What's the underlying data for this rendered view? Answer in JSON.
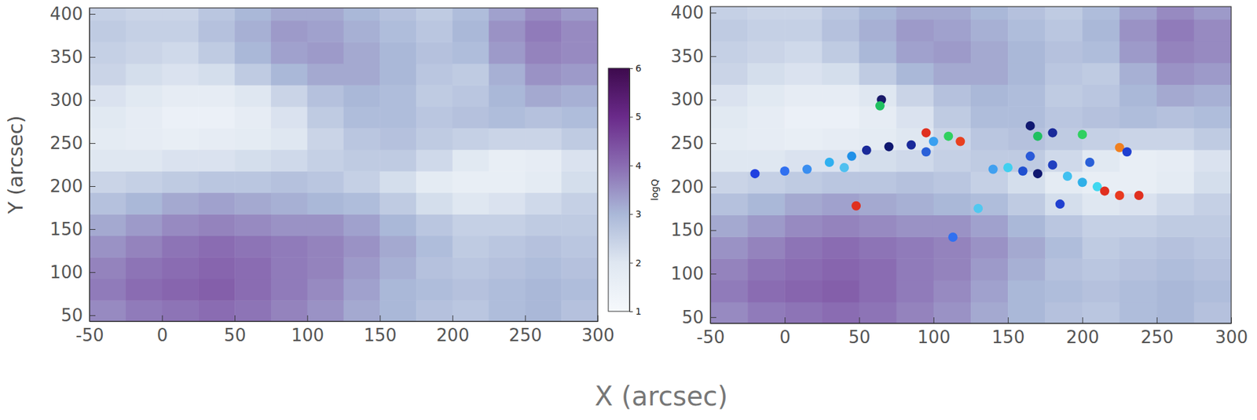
{
  "chart_data": [
    {
      "type": "heatmap",
      "x": [
        -37.5,
        -12.5,
        12.5,
        37.5,
        62.5,
        87.5,
        112.5,
        137.5,
        162.5,
        187.5,
        212.5,
        237.5,
        262.5,
        287.5
      ],
      "y": [
        55,
        80,
        105,
        130,
        155,
        180,
        205,
        230,
        255,
        280,
        305,
        330,
        355,
        380,
        405
      ],
      "z": [
        [
          3.6,
          3.8,
          3.9,
          4.0,
          3.9,
          3.7,
          3.5,
          3.2,
          3.0,
          2.8,
          2.7,
          2.9,
          3.0,
          2.8
        ],
        [
          3.8,
          4.0,
          4.1,
          4.2,
          4.0,
          3.8,
          3.6,
          3.3,
          3.0,
          2.9,
          2.8,
          2.9,
          3.0,
          2.9
        ],
        [
          3.7,
          3.9,
          4.0,
          4.1,
          4.0,
          3.8,
          3.7,
          3.4,
          3.1,
          2.8,
          2.7,
          2.8,
          2.9,
          2.8
        ],
        [
          3.5,
          3.7,
          3.9,
          4.0,
          3.9,
          3.8,
          3.7,
          3.5,
          3.2,
          2.9,
          2.6,
          2.7,
          2.8,
          2.7
        ],
        [
          3.2,
          3.4,
          3.6,
          3.7,
          3.6,
          3.5,
          3.5,
          3.3,
          3.0,
          2.7,
          2.5,
          2.5,
          2.6,
          2.6
        ],
        [
          2.8,
          3.0,
          3.2,
          3.3,
          3.2,
          3.1,
          3.0,
          2.9,
          2.6,
          2.2,
          2.0,
          2.1,
          2.3,
          2.5
        ],
        [
          2.4,
          2.5,
          2.6,
          2.7,
          2.7,
          2.8,
          2.7,
          2.5,
          2.2,
          1.8,
          1.6,
          1.6,
          1.8,
          2.2
        ],
        [
          2.0,
          2.0,
          2.1,
          2.1,
          2.2,
          2.3,
          2.5,
          2.6,
          2.6,
          2.3,
          1.9,
          1.6,
          1.7,
          2.1
        ],
        [
          1.8,
          1.7,
          1.6,
          1.7,
          1.8,
          2.0,
          2.4,
          2.7,
          2.8,
          2.6,
          2.5,
          2.4,
          2.4,
          2.6
        ],
        [
          1.9,
          1.7,
          1.5,
          1.5,
          1.7,
          2.1,
          2.6,
          2.9,
          2.9,
          2.7,
          2.8,
          2.9,
          2.8,
          2.9
        ],
        [
          2.1,
          1.9,
          1.7,
          1.7,
          2.0,
          2.4,
          2.8,
          3.0,
          2.9,
          2.6,
          2.7,
          3.0,
          3.2,
          3.1
        ],
        [
          2.4,
          2.2,
          2.1,
          2.2,
          2.6,
          3.0,
          3.2,
          3.2,
          3.0,
          2.7,
          2.6,
          3.1,
          3.5,
          3.4
        ],
        [
          2.5,
          2.4,
          2.3,
          2.6,
          3.0,
          3.3,
          3.4,
          3.2,
          3.0,
          2.8,
          2.9,
          3.4,
          3.7,
          3.6
        ],
        [
          2.6,
          2.5,
          2.5,
          2.8,
          3.1,
          3.4,
          3.3,
          3.1,
          2.9,
          2.7,
          3.0,
          3.5,
          3.8,
          3.6
        ],
        [
          2.5,
          2.4,
          2.4,
          2.7,
          3.0,
          3.2,
          3.2,
          3.0,
          2.8,
          2.6,
          2.9,
          3.3,
          3.6,
          3.4
        ]
      ],
      "xlim": [
        -50,
        300
      ],
      "ylim": [
        43,
        407
      ],
      "xticks": [
        -50,
        0,
        50,
        100,
        150,
        200,
        250,
        300
      ],
      "yticks": [
        50,
        100,
        150,
        200,
        250,
        300,
        350,
        400
      ],
      "y_label": "Y (arcsec)",
      "colorbar": {
        "label": "logQ",
        "range": [
          1,
          6
        ],
        "ticks": [
          1,
          2,
          3,
          4,
          5,
          6
        ]
      }
    },
    {
      "type": "heatmap",
      "x": [
        -37.5,
        -12.5,
        12.5,
        37.5,
        62.5,
        87.5,
        112.5,
        137.5,
        162.5,
        187.5,
        212.5,
        237.5,
        262.5,
        287.5
      ],
      "y": [
        55,
        80,
        105,
        130,
        155,
        180,
        205,
        230,
        255,
        280,
        305,
        330,
        355,
        380,
        405
      ],
      "z": [
        [
          3.6,
          3.8,
          3.9,
          4.0,
          3.9,
          3.7,
          3.5,
          3.2,
          3.0,
          2.8,
          2.7,
          2.9,
          3.0,
          2.8
        ],
        [
          3.8,
          4.0,
          4.1,
          4.2,
          4.0,
          3.8,
          3.6,
          3.3,
          3.0,
          2.9,
          2.8,
          2.9,
          3.0,
          2.9
        ],
        [
          3.7,
          3.9,
          4.0,
          4.1,
          4.0,
          3.8,
          3.7,
          3.4,
          3.1,
          2.8,
          2.7,
          2.8,
          2.9,
          2.8
        ],
        [
          3.5,
          3.7,
          3.9,
          4.0,
          3.9,
          3.8,
          3.7,
          3.5,
          3.2,
          2.9,
          2.6,
          2.7,
          2.8,
          2.7
        ],
        [
          3.2,
          3.4,
          3.6,
          3.7,
          3.6,
          3.5,
          3.5,
          3.3,
          3.0,
          2.7,
          2.5,
          2.5,
          2.6,
          2.6
        ],
        [
          2.8,
          3.0,
          3.2,
          3.3,
          3.2,
          3.1,
          3.0,
          2.9,
          2.6,
          2.2,
          2.0,
          2.1,
          2.3,
          2.5
        ],
        [
          2.4,
          2.5,
          2.6,
          2.7,
          2.7,
          2.8,
          2.7,
          2.5,
          2.2,
          1.8,
          1.6,
          1.6,
          1.8,
          2.2
        ],
        [
          2.0,
          2.0,
          2.1,
          2.1,
          2.2,
          2.3,
          2.5,
          2.6,
          2.6,
          2.3,
          1.9,
          1.6,
          1.7,
          2.1
        ],
        [
          1.8,
          1.7,
          1.6,
          1.7,
          1.8,
          2.0,
          2.4,
          2.7,
          2.8,
          2.6,
          2.5,
          2.4,
          2.4,
          2.6
        ],
        [
          1.9,
          1.7,
          1.5,
          1.5,
          1.7,
          2.1,
          2.6,
          2.9,
          2.9,
          2.7,
          2.8,
          2.9,
          2.8,
          2.9
        ],
        [
          2.1,
          1.9,
          1.7,
          1.7,
          2.0,
          2.4,
          2.8,
          3.0,
          2.9,
          2.6,
          2.7,
          3.0,
          3.2,
          3.1
        ],
        [
          2.4,
          2.2,
          2.1,
          2.2,
          2.6,
          3.0,
          3.2,
          3.2,
          3.0,
          2.7,
          2.6,
          3.1,
          3.5,
          3.4
        ],
        [
          2.5,
          2.4,
          2.3,
          2.6,
          3.0,
          3.3,
          3.4,
          3.2,
          3.0,
          2.8,
          2.9,
          3.4,
          3.7,
          3.6
        ],
        [
          2.6,
          2.5,
          2.5,
          2.8,
          3.1,
          3.4,
          3.3,
          3.1,
          2.9,
          2.7,
          3.0,
          3.5,
          3.8,
          3.6
        ],
        [
          2.5,
          2.4,
          2.4,
          2.7,
          3.0,
          3.2,
          3.2,
          3.0,
          2.8,
          2.6,
          2.9,
          3.3,
          3.6,
          3.4
        ]
      ],
      "xlim": [
        -50,
        300
      ],
      "ylim": [
        43,
        407
      ],
      "xticks": [
        -50,
        0,
        50,
        100,
        150,
        200,
        250,
        300
      ],
      "yticks": [
        50,
        100,
        150,
        200,
        250,
        300,
        350,
        400
      ],
      "overlay": {
        "type": "scatter",
        "marker": "circle",
        "x": [
          -20,
          0,
          15,
          30,
          45,
          55,
          70,
          85,
          95,
          100,
          40,
          65,
          64,
          95,
          110,
          118,
          140,
          150,
          160,
          170,
          180,
          165,
          190,
          200,
          210,
          215,
          225,
          238,
          185,
          170,
          180,
          200,
          225,
          230,
          165,
          130,
          48,
          113,
          205
        ],
        "y": [
          215,
          218,
          220,
          228,
          235,
          242,
          246,
          248,
          240,
          252,
          222,
          300,
          293,
          262,
          258,
          252,
          220,
          222,
          218,
          215,
          225,
          235,
          212,
          205,
          200,
          195,
          190,
          190,
          180,
          258,
          262,
          260,
          245,
          240,
          270,
          175,
          178,
          142,
          228
        ],
        "colors": [
          "#2040e0",
          "#3070f0",
          "#3a8ef0",
          "#30b0f0",
          "#2090e8",
          "#1a2a9a",
          "#101870",
          "#1a2a9a",
          "#2a60d8",
          "#3aa0f0",
          "#50c0f0",
          "#1a1a6a",
          "#20c060",
          "#e03020",
          "#30d060",
          "#e84020",
          "#40a0f0",
          "#40d0f0",
          "#2050d0",
          "#101870",
          "#2040c0",
          "#2a5ad8",
          "#40c0f0",
          "#30b0e8",
          "#40d8f0",
          "#e03020",
          "#e83a20",
          "#e03020",
          "#2040d0",
          "#20c060",
          "#1a2a9a",
          "#30d060",
          "#f08020",
          "#2040d0",
          "#101870",
          "#50c8f0",
          "#e03020",
          "#3070f0",
          "#2a60d8"
        ]
      }
    }
  ],
  "x_label": "X (arcsec)"
}
